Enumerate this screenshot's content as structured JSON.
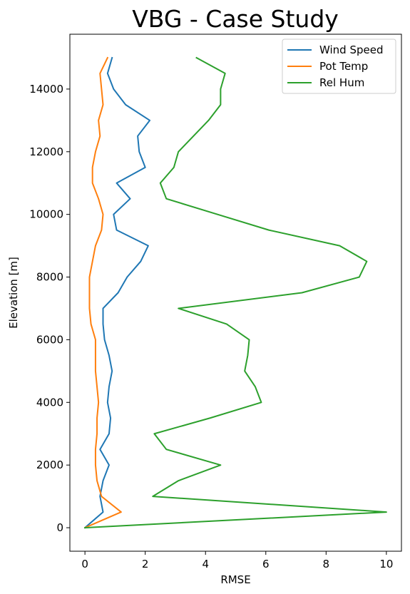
{
  "chart_data": {
    "type": "line",
    "title": "VBG - Case Study",
    "xlabel": "RMSE",
    "ylabel": "Elevation [m]",
    "xlim": [
      -0.5,
      10.5
    ],
    "ylim": [
      -750,
      15750
    ],
    "xticks": [
      0,
      2,
      4,
      6,
      8,
      10
    ],
    "yticks": [
      0,
      2000,
      4000,
      6000,
      8000,
      10000,
      12000,
      14000
    ],
    "grid": false,
    "legend_position": "top-right",
    "series": [
      {
        "name": "Wind Speed",
        "color": "#1f77b4",
        "points": [
          [
            0.0,
            0
          ],
          [
            0.6,
            500
          ],
          [
            0.5,
            1000
          ],
          [
            0.6,
            1500
          ],
          [
            0.8,
            2000
          ],
          [
            0.5,
            2500
          ],
          [
            0.8,
            3000
          ],
          [
            0.85,
            3500
          ],
          [
            0.75,
            4000
          ],
          [
            0.8,
            4500
          ],
          [
            0.9,
            5000
          ],
          [
            0.8,
            5500
          ],
          [
            0.65,
            6000
          ],
          [
            0.6,
            6500
          ],
          [
            0.6,
            7000
          ],
          [
            1.1,
            7500
          ],
          [
            1.4,
            8000
          ],
          [
            1.85,
            8500
          ],
          [
            2.1,
            9000
          ],
          [
            1.05,
            9500
          ],
          [
            0.95,
            10000
          ],
          [
            1.5,
            10500
          ],
          [
            1.05,
            11000
          ],
          [
            2.0,
            11500
          ],
          [
            1.8,
            12000
          ],
          [
            1.75,
            12500
          ],
          [
            2.15,
            13000
          ],
          [
            1.35,
            13500
          ],
          [
            0.95,
            14000
          ],
          [
            0.75,
            14500
          ],
          [
            0.9,
            15000
          ]
        ]
      },
      {
        "name": "Pot Temp",
        "color": "#ff7f0e",
        "points": [
          [
            0.0,
            0
          ],
          [
            1.2,
            500
          ],
          [
            0.55,
            1000
          ],
          [
            0.4,
            1500
          ],
          [
            0.35,
            2000
          ],
          [
            0.35,
            2500
          ],
          [
            0.4,
            3000
          ],
          [
            0.4,
            3500
          ],
          [
            0.45,
            4000
          ],
          [
            0.4,
            4500
          ],
          [
            0.35,
            5000
          ],
          [
            0.35,
            5500
          ],
          [
            0.35,
            6000
          ],
          [
            0.2,
            6500
          ],
          [
            0.15,
            7000
          ],
          [
            0.15,
            7500
          ],
          [
            0.15,
            8000
          ],
          [
            0.25,
            8500
          ],
          [
            0.35,
            9000
          ],
          [
            0.55,
            9500
          ],
          [
            0.6,
            10000
          ],
          [
            0.45,
            10500
          ],
          [
            0.25,
            11000
          ],
          [
            0.25,
            11500
          ],
          [
            0.35,
            12000
          ],
          [
            0.5,
            12500
          ],
          [
            0.45,
            13000
          ],
          [
            0.6,
            13500
          ],
          [
            0.55,
            14000
          ],
          [
            0.5,
            14500
          ],
          [
            0.75,
            15000
          ]
        ]
      },
      {
        "name": "Rel Hum",
        "color": "#2ca02c",
        "points": [
          [
            0.0,
            0
          ],
          [
            10.0,
            500
          ],
          [
            2.25,
            1000
          ],
          [
            3.1,
            1500
          ],
          [
            4.5,
            2000
          ],
          [
            2.7,
            2500
          ],
          [
            2.3,
            3000
          ],
          [
            4.15,
            3500
          ],
          [
            5.85,
            4000
          ],
          [
            5.65,
            4500
          ],
          [
            5.3,
            5000
          ],
          [
            5.4,
            5500
          ],
          [
            5.45,
            6000
          ],
          [
            4.7,
            6500
          ],
          [
            3.1,
            7000
          ],
          [
            7.2,
            7500
          ],
          [
            9.1,
            8000
          ],
          [
            9.35,
            8500
          ],
          [
            8.45,
            9000
          ],
          [
            6.1,
            9500
          ],
          [
            4.4,
            10000
          ],
          [
            2.7,
            10500
          ],
          [
            2.5,
            11000
          ],
          [
            2.95,
            11500
          ],
          [
            3.1,
            12000
          ],
          [
            3.6,
            12500
          ],
          [
            4.1,
            13000
          ],
          [
            4.5,
            13500
          ],
          [
            4.5,
            14000
          ],
          [
            4.65,
            14500
          ],
          [
            3.7,
            15000
          ]
        ]
      }
    ]
  }
}
